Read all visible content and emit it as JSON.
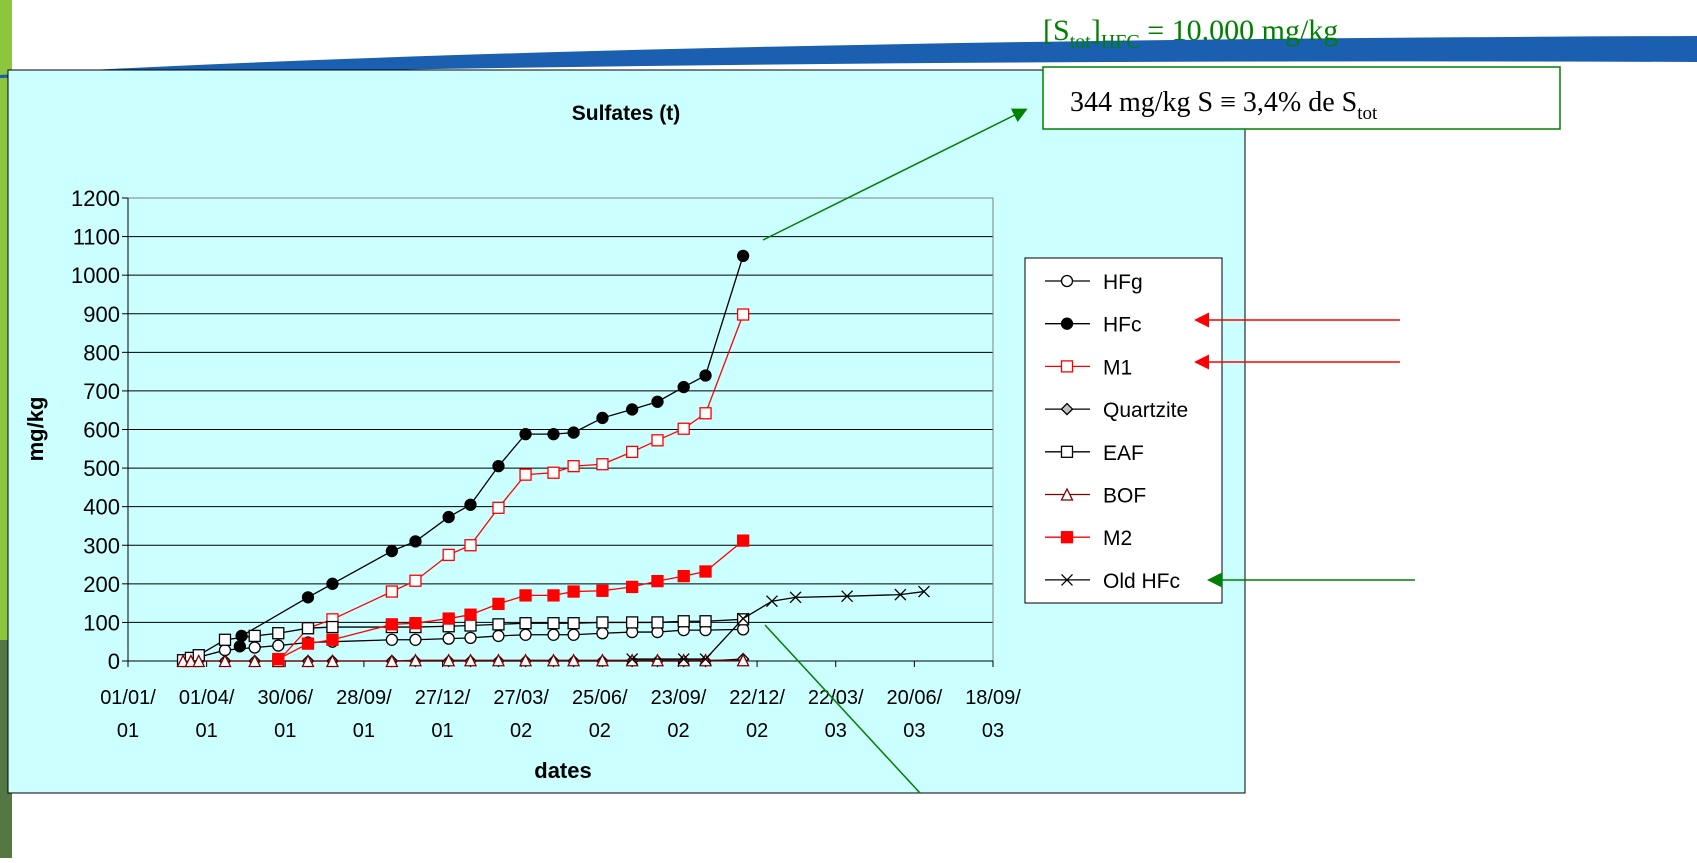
{
  "chart_data": {
    "type": "line",
    "title": "Sulfates (t)",
    "x_label": "dates",
    "y_label": "mg/kg",
    "xlim": [
      0,
      990
    ],
    "xticks": [
      {
        "value": 0,
        "label": "01/01/01"
      },
      {
        "value": 90,
        "label": "01/04/01"
      },
      {
        "value": 180,
        "label": "30/06/01"
      },
      {
        "value": 270,
        "label": "28/09/01"
      },
      {
        "value": 360,
        "label": "27/12/01"
      },
      {
        "value": 450,
        "label": "27/03/02"
      },
      {
        "value": 540,
        "label": "25/06/02"
      },
      {
        "value": 630,
        "label": "23/09/02"
      },
      {
        "value": 720,
        "label": "22/12/02"
      },
      {
        "value": 810,
        "label": "22/03/03"
      },
      {
        "value": 900,
        "label": "20/06/03"
      },
      {
        "value": 990,
        "label": "18/09/03"
      }
    ],
    "ylim": [
      0,
      1200
    ],
    "yticks": [
      0,
      100,
      200,
      300,
      400,
      500,
      600,
      700,
      800,
      900,
      1000,
      1100,
      1200
    ],
    "grid": true,
    "legend": "right",
    "series": [
      {
        "name": "HFg",
        "color": "#000000",
        "marker": "circle-open",
        "x": [
          63,
          72,
          81,
          111,
          145,
          172,
          206,
          234,
          302,
          329,
          367,
          392,
          424,
          455,
          487,
          510,
          543,
          577,
          606,
          636,
          661,
          704
        ],
        "values": [
          0,
          5,
          10,
          28,
          35,
          40,
          48,
          50,
          55,
          55,
          58,
          60,
          65,
          68,
          68,
          68,
          72,
          75,
          75,
          80,
          80,
          82
        ]
      },
      {
        "name": "HFc",
        "color": "#000000",
        "marker": "circle-filled",
        "x": [
          128,
          130,
          206,
          234,
          302,
          329,
          367,
          392,
          424,
          455,
          487,
          510,
          543,
          577,
          606,
          636,
          661,
          704
        ],
        "values": [
          38,
          65,
          165,
          200,
          285,
          310,
          373,
          405,
          505,
          588,
          588,
          592,
          630,
          652,
          672,
          710,
          740,
          1050
        ]
      },
      {
        "name": "M1",
        "color": "#ff0000",
        "marker": "square-open",
        "x": [
          172,
          206,
          234,
          302,
          329,
          367,
          392,
          424,
          455,
          487,
          510,
          543,
          577,
          606,
          636,
          661,
          704
        ],
        "values": [
          0,
          85,
          108,
          180,
          208,
          275,
          300,
          397,
          483,
          488,
          505,
          510,
          542,
          572,
          602,
          642,
          898
        ]
      },
      {
        "name": "Quartzite",
        "color": "#000000",
        "marker": "diamond",
        "x": [
          63,
          81,
          111,
          145,
          172,
          206,
          234,
          302,
          329,
          367,
          392,
          424,
          455,
          487,
          510,
          543,
          577,
          606,
          636,
          661,
          704
        ],
        "values": [
          0,
          0,
          0,
          0,
          0,
          0,
          0,
          0,
          0,
          0,
          0,
          0,
          0,
          0,
          0,
          0,
          0,
          0,
          0,
          0,
          5
        ]
      },
      {
        "name": "EAF",
        "color": "#000000",
        "marker": "square-open",
        "x": [
          63,
          72,
          81,
          111,
          145,
          172,
          206,
          234,
          302,
          329,
          367,
          392,
          424,
          455,
          487,
          510,
          543,
          577,
          606,
          636,
          661,
          704
        ],
        "values": [
          2,
          8,
          15,
          55,
          65,
          72,
          85,
          88,
          88,
          88,
          90,
          92,
          95,
          98,
          98,
          98,
          100,
          100,
          100,
          103,
          103,
          108
        ]
      },
      {
        "name": "BOF",
        "color": "#800000",
        "marker": "triangle-open",
        "x": [
          63,
          72,
          81,
          111,
          145,
          172,
          206,
          234,
          302,
          329,
          367,
          392,
          424,
          455,
          487,
          510,
          543,
          577,
          606,
          636,
          661,
          704
        ],
        "values": [
          0,
          0,
          0,
          0,
          0,
          0,
          0,
          0,
          0,
          2,
          2,
          2,
          2,
          2,
          2,
          2,
          2,
          2,
          2,
          2,
          2,
          2
        ]
      },
      {
        "name": "M2",
        "color": "#ff0000",
        "marker": "square-filled",
        "x": [
          172,
          206,
          234,
          302,
          329,
          367,
          392,
          424,
          455,
          487,
          510,
          543,
          577,
          606,
          636,
          661,
          704
        ],
        "values": [
          5,
          45,
          55,
          95,
          98,
          110,
          120,
          148,
          170,
          170,
          180,
          182,
          192,
          207,
          220,
          232,
          312
        ]
      },
      {
        "name": "Old HFc",
        "color": "#000000",
        "marker": "cross",
        "x": [
          577,
          636,
          661,
          704,
          737,
          764,
          823,
          884,
          911
        ],
        "values": [
          5,
          5,
          5,
          110,
          155,
          165,
          168,
          172,
          180
        ]
      }
    ],
    "annotations": {
      "total": [
        "[S",
        "tot",
        "]",
        "HFC",
        " = 10.000 mg/kg"
      ],
      "fraction": [
        "344 mg/kg S ≡ 3,4% de S",
        "tot"
      ]
    }
  }
}
